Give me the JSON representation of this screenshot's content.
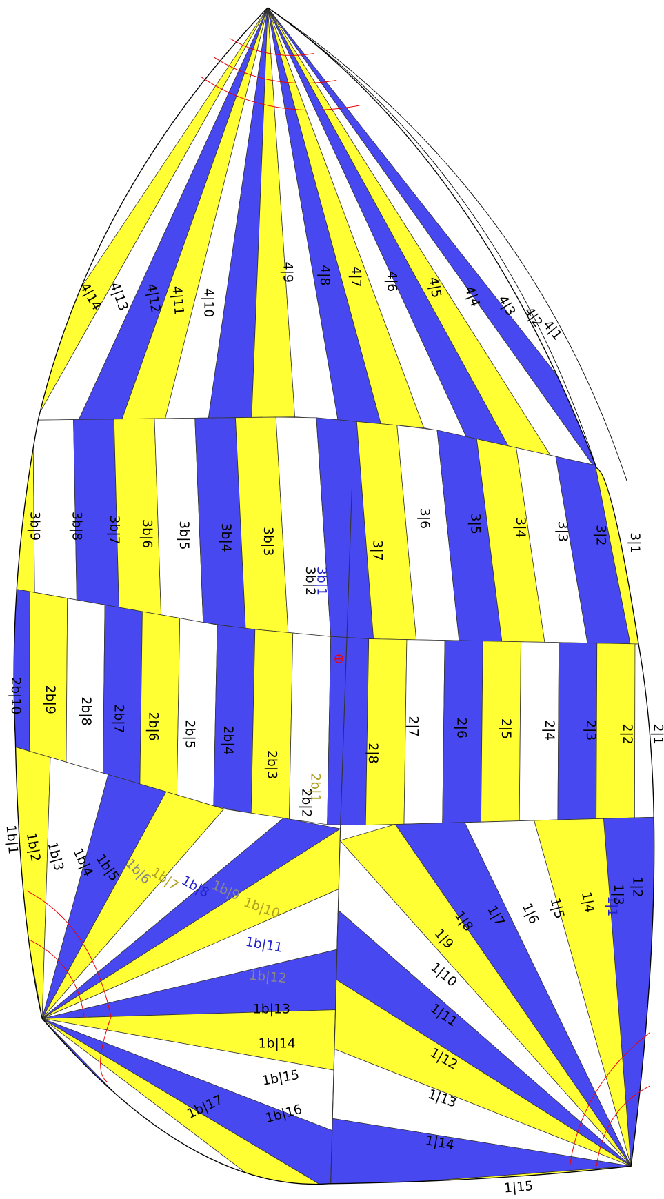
{
  "labels": [
    "4|14",
    "4|13",
    "4|12",
    "4|11",
    "4|10",
    "4|9",
    "4|8",
    "4|7",
    "4|6",
    "4|5",
    "4|4",
    "4|3",
    "4|2",
    "4|1",
    "3b|9",
    "3b|8",
    "3b|7",
    "3b|6",
    "3b|5",
    "3b|4",
    "3b|3",
    "3b|2",
    "3b|1",
    "3|7",
    "3|6",
    "3|5",
    "3|4",
    "3|3",
    "3|2",
    "3|1",
    "2b|10",
    "2b|9",
    "2b|8",
    "2b|7",
    "2b|6",
    "2b|5",
    "2b|4",
    "2b|3",
    "2b|2",
    "2b|1",
    "2|8",
    "2|7",
    "2|6",
    "2|5",
    "2|4",
    "2|3",
    "2|2",
    "2|1",
    "1b|1",
    "1b|2",
    "1b|3",
    "1b|4",
    "1b|5",
    "1b|6",
    "1b|7",
    "1b|8",
    "1b|9",
    "1b|10",
    "1b|11",
    "1b|12",
    "1b|13",
    "1b|14",
    "1b|15",
    "1b|16",
    "1b|17",
    "1|2",
    "1|1",
    "1|3",
    "1|4",
    "1|5",
    "1|6",
    "1|7",
    "1|8",
    "1|9",
    "1|10",
    "1|11",
    "1|12",
    "1|13",
    "1|14",
    "1|15"
  ],
  "center_mark": "⊕"
}
